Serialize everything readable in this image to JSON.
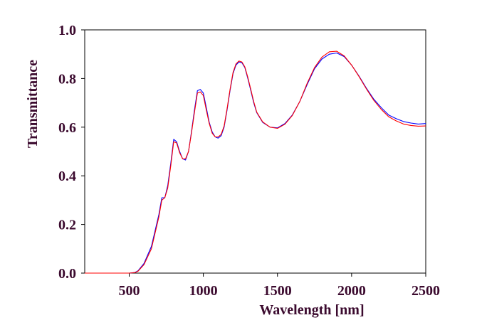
{
  "chart_data": {
    "type": "line",
    "title": "",
    "xlabel": "Wavelength [nm]",
    "ylabel": "Transmittance",
    "xlim": [
      200,
      2500
    ],
    "ylim": [
      0.0,
      1.0
    ],
    "x_ticks": [
      500,
      1000,
      1500,
      2000,
      2500
    ],
    "x_tick_labels": [
      "500",
      "1000",
      "1500",
      "2000",
      "2500"
    ],
    "y_ticks": [
      0.0,
      0.2,
      0.4,
      0.6,
      0.8,
      1.0
    ],
    "y_tick_labels": [
      "0.0",
      "0.2",
      "0.4",
      "0.6",
      "0.8",
      "1.0"
    ],
    "grid": false,
    "legend": "none",
    "series": [
      {
        "color": "#0000ff",
        "x": [
          200,
          300,
          400,
          500,
          540,
          560,
          600,
          650,
          700,
          720,
          740,
          760,
          780,
          800,
          820,
          840,
          860,
          880,
          900,
          920,
          940,
          960,
          980,
          1000,
          1020,
          1040,
          1060,
          1080,
          1100,
          1120,
          1140,
          1160,
          1180,
          1200,
          1220,
          1240,
          1260,
          1280,
          1300,
          1320,
          1340,
          1360,
          1400,
          1450,
          1500,
          1550,
          1600,
          1650,
          1700,
          1750,
          1800,
          1850,
          1900,
          1950,
          2000,
          2050,
          2100,
          2150,
          2200,
          2250,
          2300,
          2350,
          2400,
          2450,
          2500
        ],
        "y": [
          0.0,
          0.0,
          0.0,
          0.0,
          0.003,
          0.01,
          0.04,
          0.11,
          0.24,
          0.31,
          0.31,
          0.36,
          0.45,
          0.55,
          0.54,
          0.5,
          0.47,
          0.465,
          0.5,
          0.58,
          0.67,
          0.75,
          0.755,
          0.74,
          0.68,
          0.62,
          0.58,
          0.56,
          0.555,
          0.565,
          0.6,
          0.67,
          0.75,
          0.82,
          0.855,
          0.868,
          0.865,
          0.845,
          0.8,
          0.75,
          0.7,
          0.66,
          0.62,
          0.6,
          0.597,
          0.615,
          0.65,
          0.705,
          0.775,
          0.84,
          0.88,
          0.9,
          0.905,
          0.89,
          0.855,
          0.81,
          0.76,
          0.715,
          0.68,
          0.65,
          0.635,
          0.623,
          0.617,
          0.613,
          0.615
        ]
      },
      {
        "color": "#ff0000",
        "x": [
          200,
          300,
          400,
          500,
          540,
          560,
          600,
          650,
          700,
          720,
          740,
          760,
          780,
          800,
          820,
          840,
          860,
          880,
          900,
          920,
          940,
          960,
          980,
          1000,
          1020,
          1040,
          1060,
          1080,
          1100,
          1120,
          1140,
          1160,
          1180,
          1200,
          1220,
          1240,
          1260,
          1280,
          1300,
          1320,
          1340,
          1360,
          1400,
          1450,
          1500,
          1550,
          1600,
          1650,
          1700,
          1750,
          1800,
          1850,
          1900,
          1950,
          2000,
          2050,
          2100,
          2150,
          2200,
          2250,
          2300,
          2350,
          2400,
          2450,
          2500
        ],
        "y": [
          0.0,
          0.0,
          0.0,
          0.0,
          0.002,
          0.008,
          0.035,
          0.1,
          0.23,
          0.3,
          0.31,
          0.35,
          0.44,
          0.54,
          0.535,
          0.495,
          0.47,
          0.47,
          0.5,
          0.575,
          0.66,
          0.74,
          0.745,
          0.73,
          0.67,
          0.615,
          0.575,
          0.56,
          0.56,
          0.57,
          0.605,
          0.675,
          0.755,
          0.825,
          0.86,
          0.872,
          0.868,
          0.848,
          0.805,
          0.755,
          0.705,
          0.662,
          0.622,
          0.6,
          0.595,
          0.612,
          0.648,
          0.705,
          0.78,
          0.845,
          0.888,
          0.91,
          0.912,
          0.893,
          0.855,
          0.808,
          0.757,
          0.71,
          0.673,
          0.643,
          0.626,
          0.613,
          0.607,
          0.604,
          0.605
        ]
      }
    ]
  }
}
